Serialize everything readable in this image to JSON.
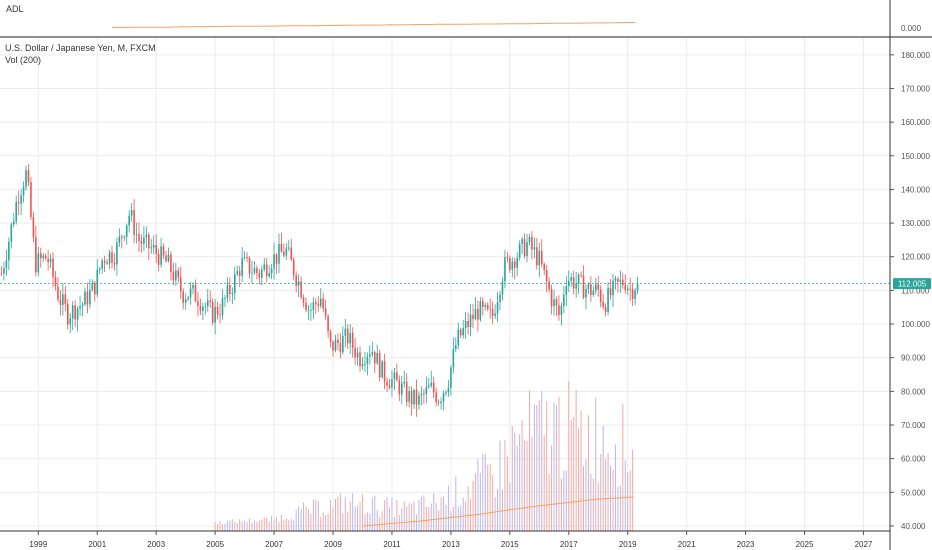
{
  "indicator_pane": {
    "label": "ADL",
    "tick_label": "0.000",
    "line_color": "#f7a35c"
  },
  "main_pane": {
    "title": "U.S. Dollar / Japanese Yen, M, FXCM",
    "volume_label": "Vol (200)"
  },
  "price_badge": {
    "text": "112.005",
    "color": "#26a69a"
  },
  "chart_data": {
    "type": "candlestick",
    "symbol": "USDJPY",
    "interval": "M",
    "source": "FXCM",
    "current_price": 112.005,
    "ylim": [
      38.5,
      185
    ],
    "xlim": [
      1997.7,
      2027.9
    ],
    "y_ticks": [
      40,
      50,
      60,
      70,
      80,
      90,
      100,
      110,
      120,
      130,
      140,
      150,
      160,
      170,
      180
    ],
    "y_tick_labels": [
      "40.000",
      "50.000",
      "60.000",
      "70.000",
      "80.000",
      "90.000",
      "100.000",
      "110.000",
      "120.000",
      "130.000",
      "140.000",
      "150.000",
      "160.000",
      "170.000",
      "180.000"
    ],
    "x_ticks": [
      1999,
      2001,
      2003,
      2005,
      2007,
      2009,
      2011,
      2013,
      2015,
      2017,
      2019,
      2021,
      2023,
      2025,
      2027
    ],
    "x_tick_labels": [
      "1999",
      "2001",
      "2003",
      "2005",
      "2007",
      "2009",
      "2011",
      "2013",
      "2015",
      "2017",
      "2019",
      "2021",
      "2023",
      "2025",
      "2027"
    ],
    "up_color": "#26a69a",
    "down_color": "#ef5350",
    "price_anchors": [
      [
        1997.75,
        115
      ],
      [
        1998.0,
        125
      ],
      [
        1998.3,
        138
      ],
      [
        1998.6,
        145
      ],
      [
        1998.9,
        118
      ],
      [
        1999.3,
        120
      ],
      [
        1999.7,
        108
      ],
      [
        2000.0,
        103
      ],
      [
        2000.5,
        106
      ],
      [
        2000.9,
        111
      ],
      [
        2001.2,
        120
      ],
      [
        2001.6,
        121
      ],
      [
        2002.1,
        133
      ],
      [
        2002.4,
        125
      ],
      [
        2002.9,
        122
      ],
      [
        2003.4,
        118
      ],
      [
        2003.9,
        109
      ],
      [
        2004.3,
        109
      ],
      [
        2004.9,
        103
      ],
      [
        2005.2,
        105
      ],
      [
        2005.5,
        110
      ],
      [
        2005.9,
        118
      ],
      [
        2006.5,
        115
      ],
      [
        2006.9,
        119
      ],
      [
        2007.4,
        122
      ],
      [
        2007.9,
        111
      ],
      [
        2008.2,
        104
      ],
      [
        2008.6,
        108
      ],
      [
        2008.9,
        93
      ],
      [
        2009.5,
        96
      ],
      [
        2009.9,
        90
      ],
      [
        2010.3,
        93
      ],
      [
        2010.7,
        85
      ],
      [
        2011.2,
        82
      ],
      [
        2011.6,
        78
      ],
      [
        2011.9,
        77
      ],
      [
        2012.3,
        81
      ],
      [
        2012.6,
        78
      ],
      [
        2012.9,
        83
      ],
      [
        2013.2,
        95
      ],
      [
        2013.5,
        99
      ],
      [
        2013.9,
        104
      ],
      [
        2014.4,
        102
      ],
      [
        2014.8,
        117
      ],
      [
        2015.3,
        121
      ],
      [
        2015.6,
        124
      ],
      [
        2016.0,
        119
      ],
      [
        2016.4,
        108
      ],
      [
        2016.7,
        102
      ],
      [
        2016.9,
        114
      ],
      [
        2017.3,
        112
      ],
      [
        2017.7,
        110
      ],
      [
        2018.0,
        110
      ],
      [
        2018.2,
        106
      ],
      [
        2018.6,
        111
      ],
      [
        2018.9,
        113
      ],
      [
        2019.1,
        110
      ],
      [
        2019.3,
        112
      ]
    ],
    "volume": {
      "label": "Vol (200)",
      "ma_color": "#f7a35c",
      "anchors": [
        [
          2005.0,
          41.0
        ],
        [
          2007.0,
          42.0
        ],
        [
          2008.0,
          44.5
        ],
        [
          2009.5,
          47.0
        ],
        [
          2011.5,
          45.0
        ],
        [
          2012.5,
          47.0
        ],
        [
          2013.5,
          51.0
        ],
        [
          2014.5,
          56.0
        ],
        [
          2015.3,
          65.0
        ],
        [
          2016.0,
          68.0
        ],
        [
          2016.6,
          69.0
        ],
        [
          2017.5,
          67.0
        ],
        [
          2018.5,
          67.0
        ],
        [
          2019.2,
          60.0
        ]
      ],
      "ma_anchors": [
        [
          2010.0,
          40.0
        ],
        [
          2012.0,
          41.5
        ],
        [
          2013.0,
          42.5
        ],
        [
          2014.0,
          43.5
        ],
        [
          2015.0,
          44.8
        ],
        [
          2016.0,
          46.0
        ],
        [
          2017.0,
          47.0
        ],
        [
          2018.0,
          48.0
        ],
        [
          2019.2,
          48.6
        ]
      ]
    }
  }
}
